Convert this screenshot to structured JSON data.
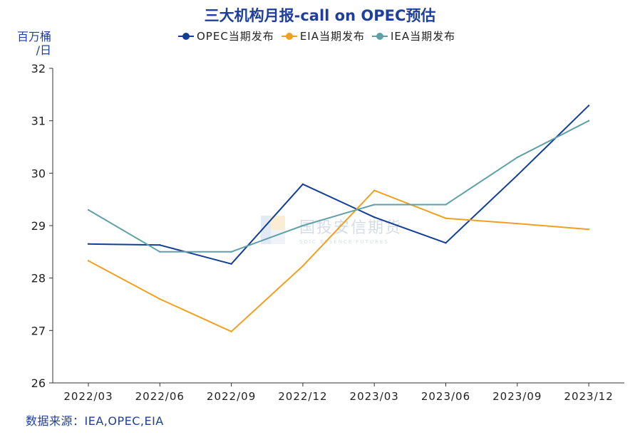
{
  "chart_data": {
    "type": "line",
    "title": "三大机构月报-call on OPEC预估",
    "ylabel": "百万桶/日",
    "ylabel_lines": [
      "百万桶",
      "/日"
    ],
    "ylim": [
      26,
      32
    ],
    "yticks": [
      26,
      27,
      28,
      29,
      30,
      31,
      32
    ],
    "categories": [
      "2022/03",
      "2022/06",
      "2022/09",
      "2022/12",
      "2023/03",
      "2023/06",
      "2023/09",
      "2023/12"
    ],
    "legend_position": "top",
    "grid": false,
    "series": [
      {
        "name": "OPEC当期发布",
        "color": "#123f94",
        "values": [
          28.65,
          28.63,
          28.27,
          29.79,
          29.16,
          28.67,
          29.96,
          31.29
        ]
      },
      {
        "name": "EIA当期发布",
        "color": "#f0a020",
        "values": [
          28.33,
          27.6,
          26.98,
          28.23,
          29.67,
          29.14,
          29.04,
          28.93
        ]
      },
      {
        "name": "IEA当期发布",
        "color": "#5fa0a8",
        "values": [
          29.3,
          28.5,
          28.5,
          29.0,
          29.4,
          29.4,
          30.3,
          31.0
        ]
      }
    ]
  },
  "source": "数据来源：IEA,OPEC,EIA",
  "watermark": {
    "cn": "国投安信期货",
    "en": "SDIC ESSENCE FUTURES"
  }
}
